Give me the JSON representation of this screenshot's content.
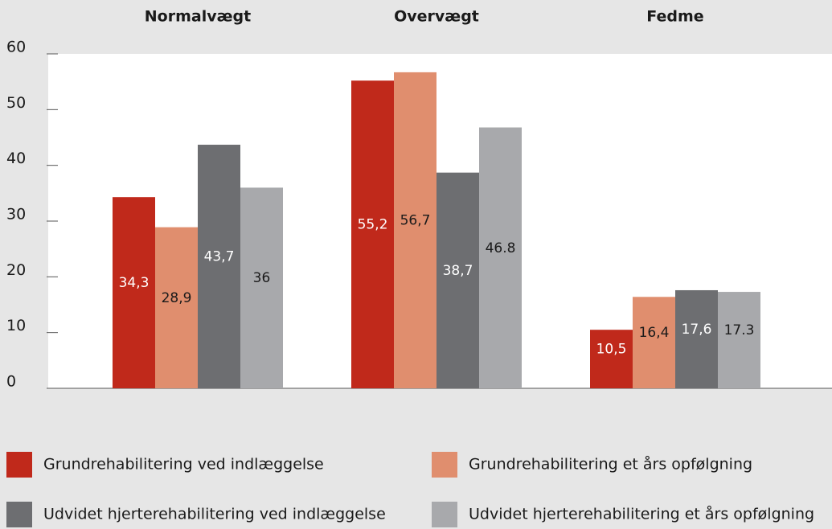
{
  "chart_data": {
    "type": "bar",
    "categories": [
      "Normalvægt",
      "Overvægt",
      "Fedme"
    ],
    "series": [
      {
        "name": "Grundrehabilitering ved indlæggelse",
        "color": "#c0291b",
        "values": [
          34.3,
          55.2,
          10.5
        ],
        "value_labels": [
          "34,3",
          "55,2",
          "10,5"
        ]
      },
      {
        "name": "Grundrehabilitering et års opfølgning",
        "color": "#e08e6e",
        "values": [
          28.9,
          56.7,
          16.4
        ],
        "value_labels": [
          "28,9",
          "56,7",
          "16,4"
        ]
      },
      {
        "name": "Udvidet hjerterehabilitering ved indlæggelse",
        "color": "#6d6e71",
        "values": [
          43.7,
          38.7,
          17.6
        ],
        "value_labels": [
          "43,7",
          "38,7",
          "17,6"
        ]
      },
      {
        "name": "Udvidet hjerterehabilitering et års opfølgning",
        "color": "#a8a9ac",
        "values": [
          36,
          46.8,
          17.3
        ]
      }
    ],
    "ylim": [
      0,
      60
    ],
    "yticks": [
      0,
      10,
      20,
      30,
      40,
      50,
      60
    ]
  }
}
